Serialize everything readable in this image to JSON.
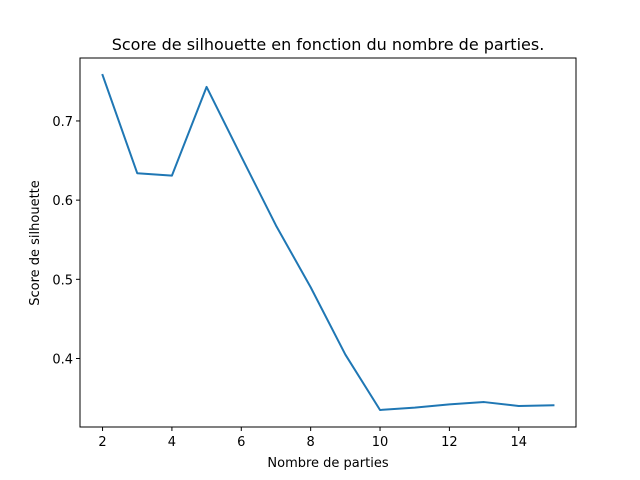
{
  "chart_data": {
    "type": "line",
    "title": "Score de silhouette en fonction du nombre de parties.",
    "xlabel": "Nombre de parties",
    "ylabel": "Score de silhouette",
    "xlim": [
      1.35,
      15.65
    ],
    "ylim": [
      0.3135,
      0.7795
    ],
    "x_ticks": [
      2,
      4,
      6,
      8,
      10,
      12,
      14
    ],
    "y_ticks": [
      0.4,
      0.5,
      0.6,
      0.7
    ],
    "x_tick_labels": [
      "2",
      "4",
      "6",
      "8",
      "10",
      "12",
      "14"
    ],
    "y_tick_labels": [
      "0.4",
      "0.5",
      "0.6",
      "0.7"
    ],
    "grid": false,
    "colors": {
      "line": "#1f77b4",
      "axes": "#000000"
    },
    "series": [
      {
        "x": [
          2,
          3,
          4,
          5,
          6,
          7,
          8,
          9,
          10,
          11,
          12,
          13,
          14,
          15
        ],
        "values": [
          0.758,
          0.634,
          0.631,
          0.743,
          0.655,
          0.568,
          0.49,
          0.405,
          0.335,
          0.338,
          0.342,
          0.345,
          0.34,
          0.341
        ]
      }
    ]
  }
}
